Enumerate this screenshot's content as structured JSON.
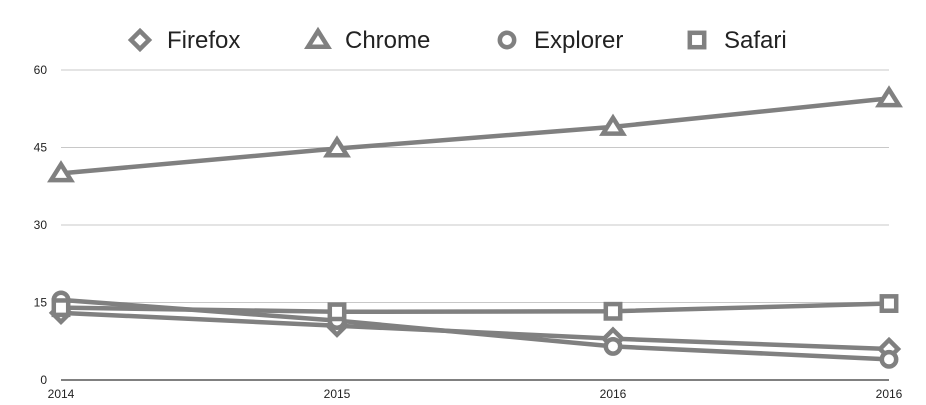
{
  "chart_data": {
    "type": "line",
    "categories": [
      "2014",
      "2015",
      "2016",
      "2016"
    ],
    "series": [
      {
        "name": "Firefox",
        "marker": "diamond",
        "values": [
          13,
          10.5,
          8,
          6
        ]
      },
      {
        "name": "Chrome",
        "marker": "triangle",
        "values": [
          40,
          44.8,
          49,
          54.5
        ]
      },
      {
        "name": "Explorer",
        "marker": "circle",
        "values": [
          15.5,
          11.5,
          6.5,
          4
        ]
      },
      {
        "name": "Safari",
        "marker": "square",
        "values": [
          14,
          13.2,
          13.3,
          14.8
        ]
      }
    ],
    "y_ticks": [
      "0",
      "15",
      "30",
      "45",
      "60"
    ],
    "ylim": [
      0,
      60
    ],
    "grid": true,
    "legend_position": "top",
    "colors": {
      "line": "#808080",
      "grid": "#c8c8c8",
      "axis": "#000000",
      "text": "#222222"
    }
  }
}
